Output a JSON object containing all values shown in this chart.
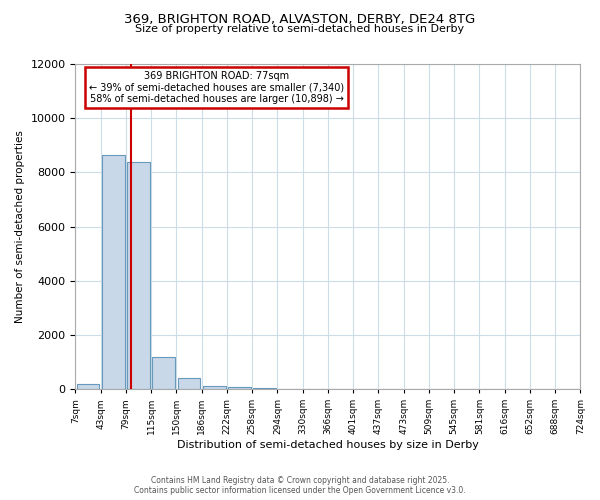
{
  "title_line1": "369, BRIGHTON ROAD, ALVASTON, DERBY, DE24 8TG",
  "title_line2": "Size of property relative to semi-detached houses in Derby",
  "xlabel": "Distribution of semi-detached houses by size in Derby",
  "ylabel": "Number of semi-detached properties",
  "footer_line1": "Contains HM Land Registry data © Crown copyright and database right 2025.",
  "footer_line2": "Contains public sector information licensed under the Open Government Licence v3.0.",
  "annotation_line1": "369 BRIGHTON ROAD: 77sqm",
  "annotation_line2": "← 39% of semi-detached houses are smaller (7,340)",
  "annotation_line3": "58% of semi-detached houses are larger (10,898) →",
  "bin_labels": [
    "7sqm",
    "43sqm",
    "79sqm",
    "115sqm",
    "150sqm",
    "186sqm",
    "222sqm",
    "258sqm",
    "294sqm",
    "330sqm",
    "366sqm",
    "401sqm",
    "437sqm",
    "473sqm",
    "509sqm",
    "545sqm",
    "581sqm",
    "616sqm",
    "652sqm",
    "688sqm",
    "724sqm"
  ],
  "bar_values": [
    200,
    8650,
    8400,
    1200,
    400,
    100,
    80,
    20,
    5,
    0,
    0,
    0,
    0,
    0,
    0,
    0,
    0,
    0,
    0,
    0
  ],
  "bar_color": "#c8d8e8",
  "bar_edgecolor": "#6699bb",
  "property_line_x": 1.72,
  "ylim": [
    0,
    12000
  ],
  "yticks": [
    0,
    2000,
    4000,
    6000,
    8000,
    10000,
    12000
  ],
  "annotation_box_color": "#cc0000",
  "redline_color": "#cc0000",
  "background_color": "#ffffff",
  "grid_color": "#ccdde8"
}
